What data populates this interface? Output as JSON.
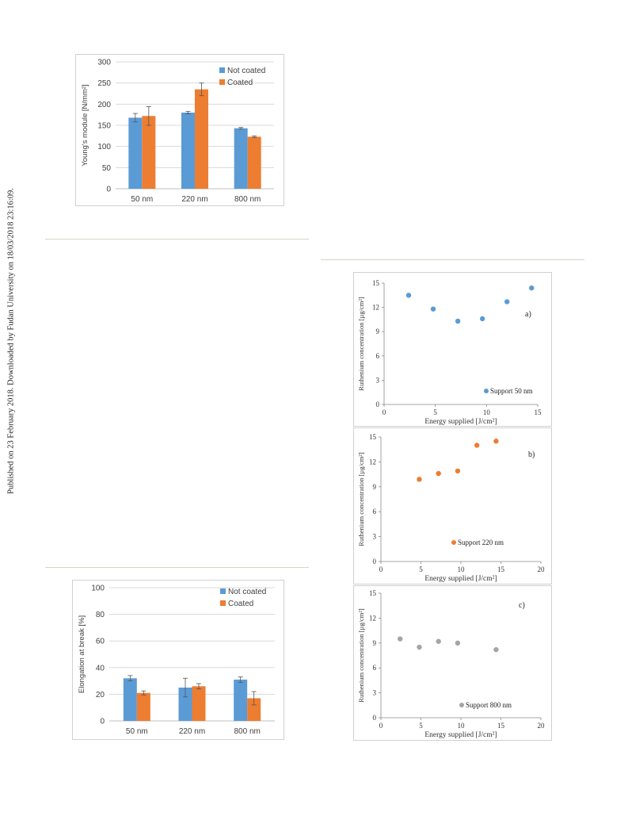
{
  "side_text": "Published on 23 February 2018. Downloaded by Fudan University on 18/03/2018 23:16:09.",
  "colors": {
    "not_coated": "#5b9bd5",
    "coated": "#ed7d31",
    "c800": "#a5a5a5",
    "grid": "#d9d9d9",
    "axis": "#404040"
  },
  "chart_data": [
    {
      "id": "youngs",
      "type": "bar",
      "title": "",
      "ylabel": "Young's module [N/mm²]",
      "xlabel": "",
      "categories": [
        "50 nm",
        "220 nm",
        "800 nm"
      ],
      "ylim": [
        0,
        300
      ],
      "yticks": [
        "0",
        "50",
        "100",
        "150",
        "200",
        "250",
        "300"
      ],
      "legend_position": "top-right",
      "series": [
        {
          "name": "Not coated",
          "values": [
            168,
            180,
            143
          ],
          "errors": [
            10,
            3,
            2
          ]
        },
        {
          "name": "Coated",
          "values": [
            172,
            235,
            123
          ],
          "errors": [
            22,
            15,
            2
          ]
        }
      ]
    },
    {
      "id": "elongation",
      "type": "bar",
      "title": "",
      "ylabel": "Elongation at break [%]",
      "xlabel": "",
      "categories": [
        "50 nm",
        "220 nm",
        "800 nm"
      ],
      "ylim": [
        0,
        100
      ],
      "yticks": [
        "0",
        "20",
        "40",
        "60",
        "80",
        "100"
      ],
      "legend_position": "top-right",
      "series": [
        {
          "name": "Not coated",
          "values": [
            32,
            25,
            31
          ],
          "errors": [
            2,
            7,
            2
          ]
        },
        {
          "name": "Coated",
          "values": [
            21,
            26,
            17
          ],
          "errors": [
            1.5,
            2,
            5
          ]
        }
      ]
    },
    {
      "id": "ru50",
      "type": "scatter",
      "panel_label": "a)",
      "ylabel": "Ruthenium concentration [µg/cm²]",
      "xlabel": "Energy supplied [J/cm²]",
      "xlim": [
        0,
        15
      ],
      "ylim": [
        0,
        15
      ],
      "xticks": [
        "0",
        "5",
        "10",
        "15"
      ],
      "yticks": [
        "0",
        "3",
        "6",
        "9",
        "12",
        "15"
      ],
      "legend_position": "bottom-right",
      "series": [
        {
          "name": "Support 50 nm",
          "x": [
            2.4,
            4.8,
            7.2,
            9.6,
            12.0,
            14.4
          ],
          "y": [
            13.5,
            11.8,
            10.3,
            10.6,
            12.7,
            14.4
          ]
        }
      ]
    },
    {
      "id": "ru220",
      "type": "scatter",
      "panel_label": "b)",
      "ylabel": "Ruthenium concentration [µg/cm²]",
      "xlabel": "Energy supplied [J/cm²]",
      "xlim": [
        0,
        20
      ],
      "ylim": [
        0,
        15
      ],
      "xticks": [
        "0",
        "5",
        "10",
        "15",
        "20"
      ],
      "yticks": [
        "0",
        "3",
        "6",
        "9",
        "12",
        "15"
      ],
      "legend_position": "bottom-center",
      "series": [
        {
          "name": "Support 220 nm",
          "x": [
            4.8,
            7.2,
            9.6,
            12.0,
            14.4
          ],
          "y": [
            9.9,
            10.6,
            10.9,
            14.0,
            14.5
          ]
        }
      ]
    },
    {
      "id": "ru800",
      "type": "scatter",
      "panel_label": "c)",
      "ylabel": "Ruthenium concentration [µg/cm²]",
      "xlabel": "Energy supplied [J/cm²]",
      "xlim": [
        0,
        20
      ],
      "ylim": [
        0,
        15
      ],
      "xticks": [
        "0",
        "5",
        "10",
        "15",
        "20"
      ],
      "yticks": [
        "0",
        "3",
        "6",
        "9",
        "12",
        "15"
      ],
      "legend_position": "bottom-center",
      "series": [
        {
          "name": "Support 800  nm",
          "x": [
            2.4,
            4.8,
            7.2,
            9.6,
            14.4
          ],
          "y": [
            9.5,
            8.5,
            9.2,
            9.0,
            8.2
          ]
        }
      ]
    }
  ]
}
